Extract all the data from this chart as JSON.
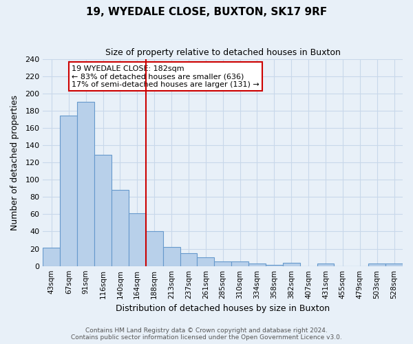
{
  "title": "19, WYEDALE CLOSE, BUXTON, SK17 9RF",
  "subtitle": "Size of property relative to detached houses in Buxton",
  "xlabel": "Distribution of detached houses by size in Buxton",
  "ylabel": "Number of detached properties",
  "categories": [
    "43sqm",
    "67sqm",
    "91sqm",
    "116sqm",
    "140sqm",
    "164sqm",
    "188sqm",
    "213sqm",
    "237sqm",
    "261sqm",
    "285sqm",
    "310sqm",
    "334sqm",
    "358sqm",
    "382sqm",
    "407sqm",
    "431sqm",
    "455sqm",
    "479sqm",
    "503sqm",
    "528sqm"
  ],
  "values": [
    21,
    174,
    190,
    129,
    88,
    61,
    40,
    22,
    15,
    10,
    5,
    5,
    3,
    1,
    4,
    0,
    3,
    0,
    0,
    3,
    3
  ],
  "bar_color": "#b8d0ea",
  "bar_edge_color": "#6699cc",
  "vline_color": "#cc0000",
  "annotation_text": "19 WYEDALE CLOSE: 182sqm\n← 83% of detached houses are smaller (636)\n17% of semi-detached houses are larger (131) →",
  "annotation_box_color": "#ffffff",
  "annotation_box_edge_color": "#cc0000",
  "ylim": [
    0,
    240
  ],
  "yticks": [
    0,
    20,
    40,
    60,
    80,
    100,
    120,
    140,
    160,
    180,
    200,
    220,
    240
  ],
  "grid_color": "#c8d8ea",
  "bg_color": "#e8f0f8",
  "footer1": "Contains HM Land Registry data © Crown copyright and database right 2024.",
  "footer2": "Contains public sector information licensed under the Open Government Licence v3.0."
}
